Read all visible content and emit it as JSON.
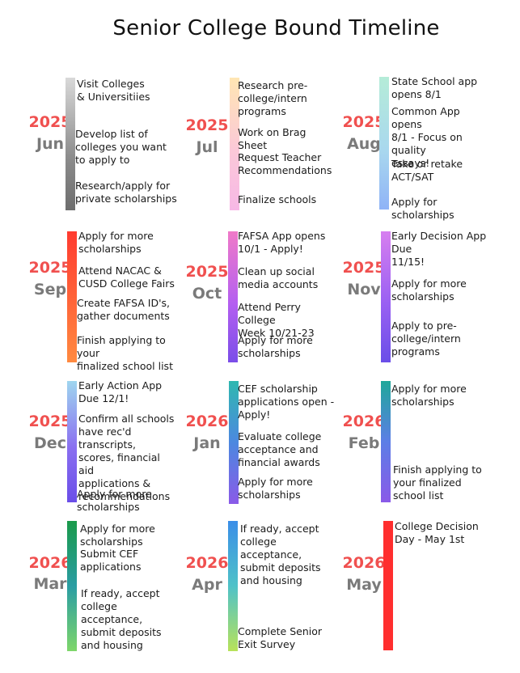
{
  "title": "Senior College Bound Timeline",
  "months": [
    {
      "year": "2025",
      "month": "Jun",
      "items": [
        "Visit Colleges\n& Universitiies",
        "Develop list of\ncolleges you want\nto apply to",
        "Research/apply for\nprivate scholarships"
      ]
    },
    {
      "year": "2025",
      "month": "Jul",
      "items": [
        "Research  pre-\ncollege/intern\nprograms",
        "Work on Brag Sheet",
        "Request Teacher\nRecommendations",
        "Finalize schools"
      ]
    },
    {
      "year": "2025",
      "month": "Aug",
      "items": [
        "State School app\nopens 8/1",
        "Common App opens\n8/1 - Focus on quality\nessays!",
        "Take or retake ACT/SAT",
        "Apply for scholarships"
      ]
    },
    {
      "year": "2025",
      "month": "Sep",
      "items": [
        "Apply for more\nscholarships",
        "Attend NACAC &\nCUSD College Fairs",
        "Create FAFSA ID's,\ngather documents",
        "Finish applying to your\nfinalized school list"
      ]
    },
    {
      "year": "2025",
      "month": "Oct",
      "items": [
        "FAFSA App opens\n10/1 - Apply!",
        "Clean up social\nmedia accounts",
        "Attend Perry College\nWeek 10/21-23",
        "Apply for more\nscholarships"
      ]
    },
    {
      "year": "2025",
      "month": "Nov",
      "items": [
        "Early Decision App Due\n11/15!",
        "Apply for more\nscholarships",
        "Apply to  pre-\ncollege/intern programs"
      ]
    },
    {
      "year": "2025",
      "month": "Dec",
      "items": [
        "Early Action App Due 12/1!",
        "Confirm all schools\nhave rec'd transcripts,\nscores, financial aid\napplications &\nrecommendations",
        "Apply for more scholarships"
      ]
    },
    {
      "year": "2026",
      "month": "Jan",
      "items": [
        "CEF  scholarship\napplications open -\nApply!",
        "Evaluate college\nacceptance and\nfinancial awards",
        "Apply for more\nscholarships"
      ]
    },
    {
      "year": "2026",
      "month": "Feb",
      "items": [
        "Apply for more\nscholarships",
        "Finish applying to\nyour finalized\nschool list"
      ]
    },
    {
      "year": "2026",
      "month": "Mar",
      "items": [
        "Apply for more scholarships",
        "Submit CEF\napplications",
        "If ready, accept\ncollege\nacceptance,\nsubmit deposits\nand housing"
      ]
    },
    {
      "year": "2026",
      "month": "Apr",
      "items": [
        "If ready, accept\ncollege\nacceptance,\nsubmit deposits\nand housing",
        "Complete Senior\nExit Survey"
      ]
    },
    {
      "year": "2026",
      "month": "May",
      "items": [
        "College Decision\nDay - May 1st"
      ]
    }
  ]
}
